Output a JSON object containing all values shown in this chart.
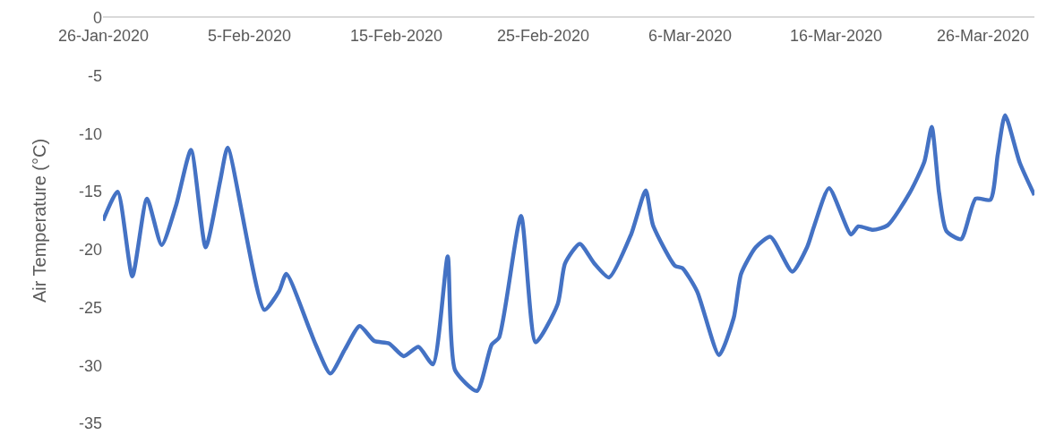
{
  "chart_data": {
    "type": "line",
    "ylabel": "Air Temperature (°C)",
    "x": [
      "2020-01-26",
      "2020-01-27",
      "2020-01-28",
      "2020-01-29",
      "2020-01-30",
      "2020-01-31",
      "2020-02-01",
      "2020-02-02",
      "2020-02-03",
      "2020-02-03T12:00",
      "2020-02-06",
      "2020-02-07",
      "2020-02-07T12:00",
      "2020-02-09",
      "2020-02-09T12:00",
      "2020-02-10T12:00",
      "2020-02-11T12:00",
      "2020-02-12T12:00",
      "2020-02-13T12:00",
      "2020-02-14T12:00",
      "2020-02-15T12:00",
      "2020-02-16T12:00",
      "2020-02-17T12:00",
      "2020-02-18T12:00",
      "2020-02-19",
      "2020-02-20T12:00",
      "2020-02-21T12:00",
      "2020-02-22",
      "2020-02-23T12:00",
      "2020-02-24T12:00",
      "2020-02-26",
      "2020-02-26T12:00",
      "2020-02-27T12:00",
      "2020-02-28T12:00",
      "2020-02-29T12:00",
      "2020-03-02",
      "2020-03-03",
      "2020-03-03T12:00",
      "2020-03-05",
      "2020-03-05T12:00",
      "2020-03-06T12:00",
      "2020-03-08",
      "2020-03-09",
      "2020-03-09T12:00",
      "2020-03-10T12:00",
      "2020-03-11T12:00",
      "2020-03-13",
      "2020-03-14",
      "2020-03-14T12:00",
      "2020-03-15T12:00",
      "2020-03-17",
      "2020-03-17T12:00",
      "2020-03-18T12:00",
      "2020-03-19T12:00",
      "2020-03-21",
      "2020-03-22",
      "2020-03-22T12:00",
      "2020-03-23",
      "2020-03-23T12:00",
      "2020-03-24T12:00",
      "2020-03-25T12:00",
      "2020-03-26T12:00",
      "2020-03-27",
      "2020-03-27T12:00",
      "2020-03-28T12:00",
      "2020-03-29T12:00"
    ],
    "series": [
      {
        "color": "#4472c4",
        "values": [
          -17.5,
          -15.0,
          -22.3,
          -15.6,
          -19.6,
          -16.1,
          -11.4,
          -19.8,
          -14.0,
          -11.2,
          -25.2,
          -23.6,
          -22.1,
          -26.6,
          -28.2,
          -30.7,
          -28.6,
          -26.6,
          -27.9,
          -28.1,
          -29.2,
          -28.4,
          -29.9,
          -20.6,
          -30.4,
          -32.2,
          -28.2,
          -27.6,
          -17.1,
          -28.0,
          -24.7,
          -21.2,
          -19.5,
          -21.2,
          -22.4,
          -18.7,
          -14.9,
          -17.9,
          -21.4,
          -21.6,
          -23.6,
          -29.1,
          -25.9,
          -22.1,
          -19.8,
          -18.9,
          -21.9,
          -19.8,
          -17.9,
          -14.7,
          -18.7,
          -18.0,
          -18.3,
          -17.9,
          -15.1,
          -12.4,
          -9.4,
          -15.1,
          -18.4,
          -19.1,
          -15.6,
          -15.7,
          -11.8,
          -8.4,
          -12.5,
          -15.3
        ]
      }
    ],
    "xlim": [
      "2020-01-26",
      "2020-03-29T12:00"
    ],
    "xticks": [
      {
        "value": "2020-01-26",
        "label": "26-Jan-2020"
      },
      {
        "value": "2020-02-05",
        "label": "5-Feb-2020"
      },
      {
        "value": "2020-02-15",
        "label": "15-Feb-2020"
      },
      {
        "value": "2020-02-25",
        "label": "25-Feb-2020"
      },
      {
        "value": "2020-03-06",
        "label": "6-Mar-2020"
      },
      {
        "value": "2020-03-16",
        "label": "16-Mar-2020"
      },
      {
        "value": "2020-03-26",
        "label": "26-Mar-2020"
      }
    ],
    "ylim": [
      -35,
      0
    ],
    "yticks": [
      0,
      -5,
      -10,
      -15,
      -20,
      -25,
      -30,
      -35
    ],
    "grid": false,
    "marker": "none",
    "line_style": "solid"
  }
}
